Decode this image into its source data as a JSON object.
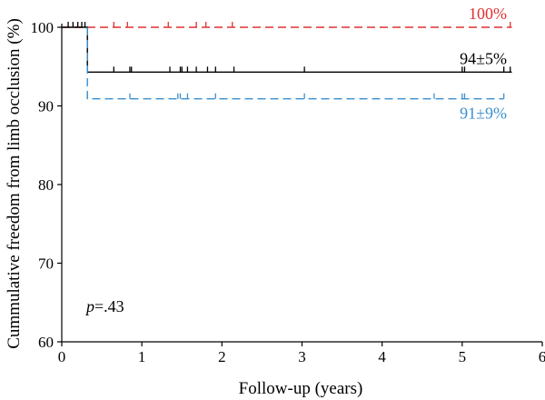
{
  "chart_data": {
    "type": "line",
    "title": "",
    "xlabel": "Follow-up (years)",
    "ylabel": "Cummulative freedom from limb occlusion (%)",
    "xlim": [
      0,
      6
    ],
    "ylim": [
      60,
      100
    ],
    "xticks": [
      "0",
      "1",
      "2",
      "3",
      "4",
      "5",
      "6"
    ],
    "yticks": [
      "60",
      "70",
      "80",
      "90",
      "100"
    ],
    "grid": false,
    "series": [
      {
        "color": "#e03030",
        "dash": "dashed",
        "steps": [
          [
            0,
            100
          ],
          [
            5.62,
            100
          ]
        ],
        "censored": [
          0.65,
          0.82,
          1.33,
          1.68,
          1.8,
          2.13,
          5.6
        ],
        "end_label": "100%"
      },
      {
        "color": "#000000",
        "dash": "solid",
        "steps": [
          [
            0,
            100
          ],
          [
            0.32,
            100
          ],
          [
            0.32,
            94.3
          ],
          [
            5.62,
            94.3
          ]
        ],
        "censored": [
          0.08,
          0.14,
          0.2,
          0.25,
          0.29,
          0.65,
          0.85,
          0.87,
          1.35,
          1.48,
          1.5,
          1.57,
          1.68,
          1.82,
          1.92,
          2.15,
          3.03,
          5.0,
          5.03,
          5.52,
          5.6
        ],
        "end_label": "94±5%"
      },
      {
        "color": "#3a8fcf",
        "dash": "dashed",
        "steps": [
          [
            0.32,
            100
          ],
          [
            0.32,
            90.9
          ],
          [
            5.52,
            90.9
          ]
        ],
        "censored": [
          0.32,
          0.85,
          1.45,
          1.48,
          1.57,
          1.92,
          3.03,
          4.65,
          5.0,
          5.03,
          5.52
        ],
        "end_label": "91±9%"
      }
    ],
    "p_label": "p",
    "p_value": "=.43"
  }
}
